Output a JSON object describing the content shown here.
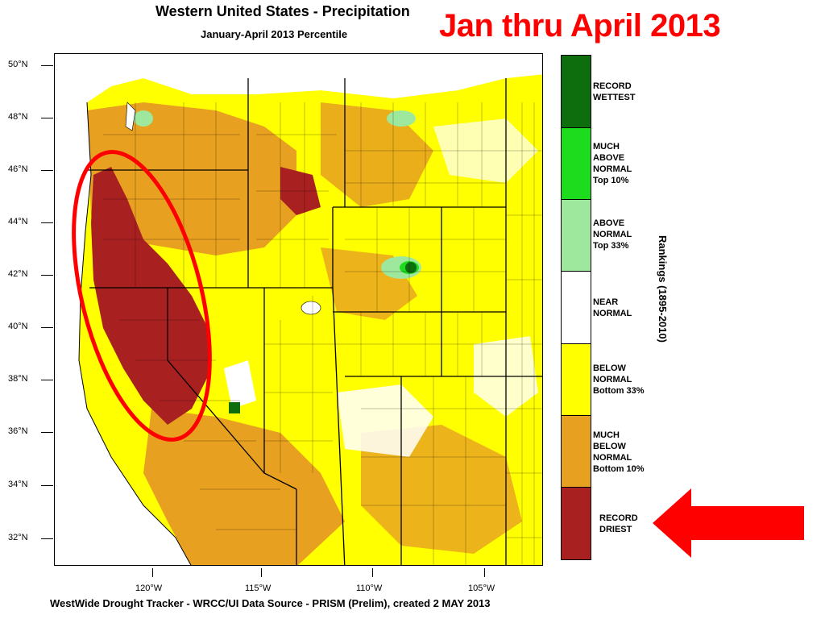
{
  "header": {
    "title": "Western United States - Precipitation",
    "subtitle": "January-April 2013 Percentile",
    "headline": "Jan thru April 2013"
  },
  "map": {
    "latitude_labels": [
      "50°N",
      "48°N",
      "46°N",
      "44°N",
      "42°N",
      "40°N",
      "38°N",
      "36°N",
      "34°N",
      "32°N"
    ],
    "longitude_labels": [
      "120°W",
      "115°W",
      "110°W",
      "105°W"
    ],
    "highlight": {
      "shape": "ellipse",
      "color": "#ff0000",
      "region": "California / Oregon"
    }
  },
  "legend": {
    "axis_title": "Rankings (1895-2010)",
    "categories": [
      {
        "label": "RECORD\nWETTEST",
        "color": "#0e6e0e"
      },
      {
        "label": "MUCH\nABOVE\nNORMAL\nTop 10%",
        "color": "#1ddc1d"
      },
      {
        "label": "ABOVE\nNORMAL\nTop 33%",
        "color": "#9ee89e"
      },
      {
        "label": "NEAR\nNORMAL",
        "color": "#ffffff"
      },
      {
        "label": "BELOW\nNORMAL\nBottom 33%",
        "color": "#ffff00"
      },
      {
        "label": "MUCH\nBELOW\nNORMAL\nBottom 10%",
        "color": "#e8a020"
      },
      {
        "label": "RECORD\nDRIEST",
        "color": "#a82020"
      }
    ],
    "arrow_color": "#ff0000"
  },
  "footer": {
    "credit": "WestWide Drought Tracker - WRCC/UI  Data Source - PRISM (Prelim), created  2 MAY 2013"
  }
}
